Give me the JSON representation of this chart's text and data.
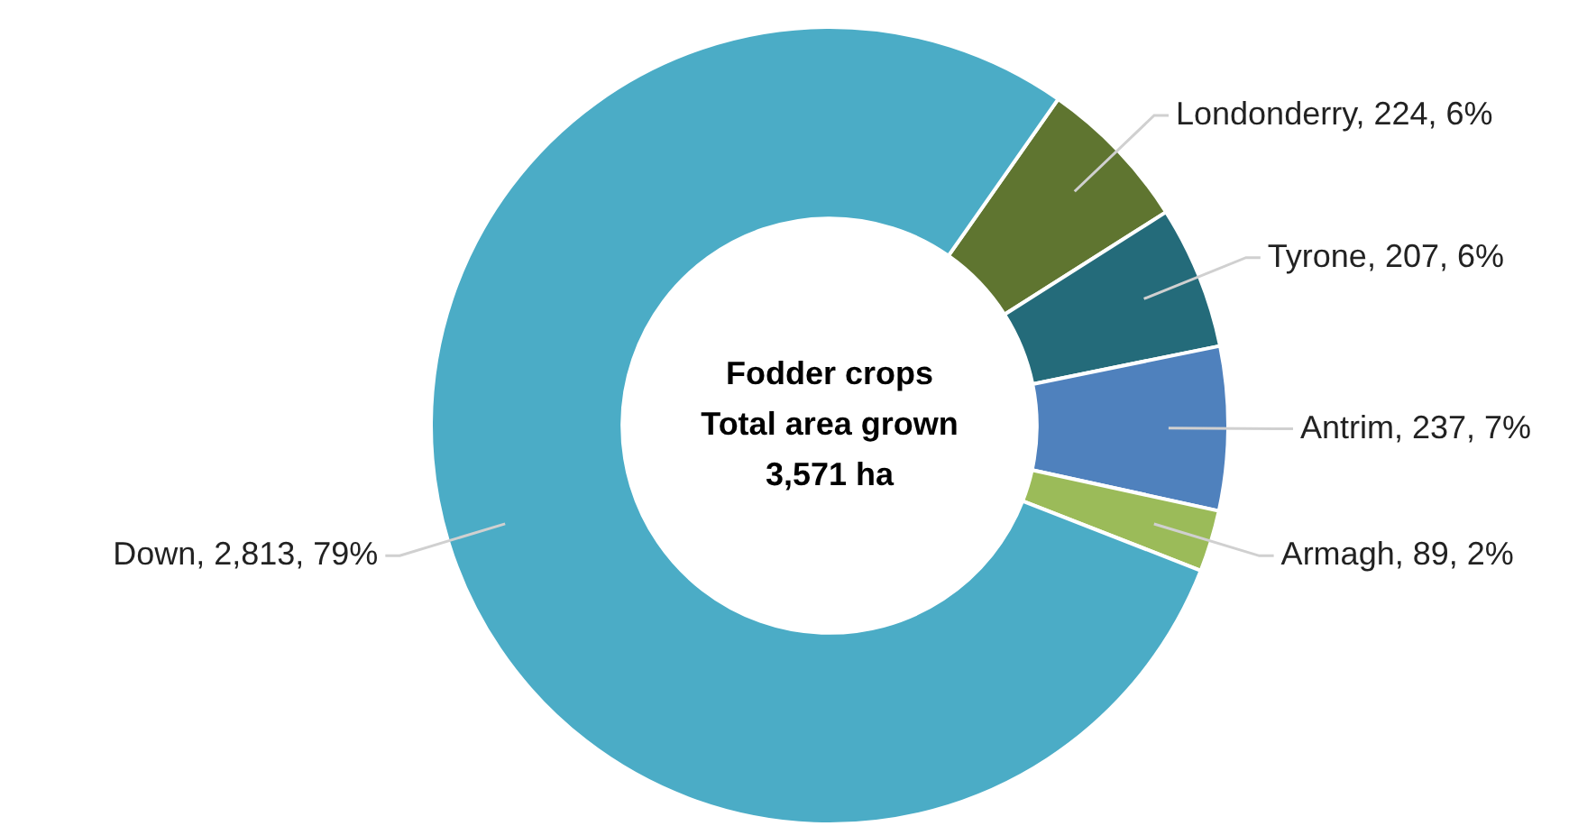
{
  "chart_data": {
    "type": "donut",
    "title": "Fodder crops",
    "subtitle": "Total area grown",
    "annotations": [
      "3,571 ha"
    ],
    "categories": [
      "Londonderry",
      "Tyrone",
      "Antrim",
      "Armagh",
      "Down"
    ],
    "values": [
      224,
      207,
      237,
      89,
      2813
    ],
    "value_labels": [
      "224, 6%",
      "207, 6%",
      "237, 7%",
      "89, 2%",
      "2,813, 79%"
    ],
    "colors": [
      "#5f7530",
      "#246b7a",
      "#4f81bd",
      "#9bbb59",
      "#4bacc6"
    ],
    "legend": false
  }
}
